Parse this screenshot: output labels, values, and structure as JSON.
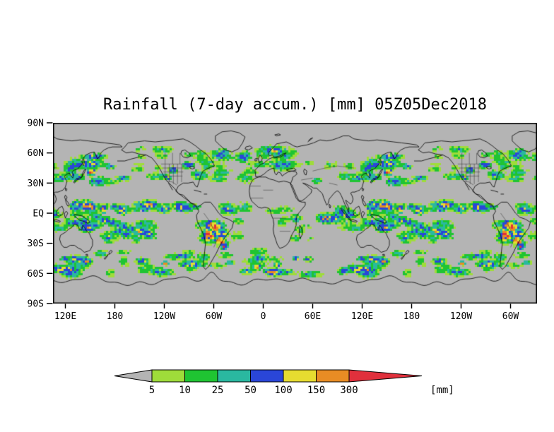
{
  "title": "Rainfall (7-day accum.) [mm] 05Z05Dec2018",
  "map": {
    "background_color": "#b4b4b4",
    "lat_ticks": [
      "90N",
      "60N",
      "30N",
      "EQ",
      "30S",
      "60S",
      "90S"
    ],
    "lon_ticks": [
      "120E",
      "180",
      "120W",
      "60W",
      "0",
      "60E",
      "120E",
      "180",
      "120W",
      "60W"
    ]
  },
  "colorbar": {
    "levels": [
      "5",
      "10",
      "25",
      "50",
      "100",
      "150",
      "300"
    ],
    "unit": "[mm]",
    "segment_colors": [
      "#b4b4b4",
      "#9fdc3a",
      "#1fc432",
      "#2ab8a0",
      "#2a46d8",
      "#e6dc30",
      "#e88c24",
      "#e0303c"
    ],
    "segment_names": [
      "below-5",
      "5-10",
      "10-25",
      "25-50",
      "50-100",
      "100-150",
      "150-300",
      "above-300"
    ]
  },
  "chart_data": {
    "type": "heatmap",
    "title": "Rainfall (7-day accum.) [mm] 05Z05Dec2018",
    "variable": "Rainfall (7-day accum.)",
    "unit": "mm",
    "timestamp": "05Z05Dec2018",
    "projection": "global lat-lon map, longitude wraps 1.5 times",
    "x_axis": {
      "tick_labels": [
        "120E",
        "180",
        "120W",
        "60W",
        "0",
        "60E",
        "120E",
        "180",
        "120W",
        "60W"
      ],
      "tick_spacing_degrees": 60
    },
    "y_axis": {
      "tick_labels": [
        "90N",
        "60N",
        "30N",
        "EQ",
        "30S",
        "60S",
        "90S"
      ],
      "range_degrees": [
        -90,
        90
      ]
    },
    "color_scale": {
      "levels_mm": [
        5,
        10,
        25,
        50,
        100,
        150,
        300
      ],
      "colors": [
        "#b4b4b4",
        "#9fdc3a",
        "#1fc432",
        "#2ab8a0",
        "#2a46d8",
        "#e6dc30",
        "#e88c24",
        "#e0303c"
      ],
      "below_min_color": "#b4b4b4",
      "above_max_color": "#e0303c"
    },
    "legend_position": "bottom",
    "pattern_summary": "Rain bands along NH and SH mid-latitude storm tracks and the tropical ITCZ/SPCZ; dry gray subtropics and poles; strongest cores (yellow/orange/red) in the tropics, South America and Southern Ocean"
  }
}
